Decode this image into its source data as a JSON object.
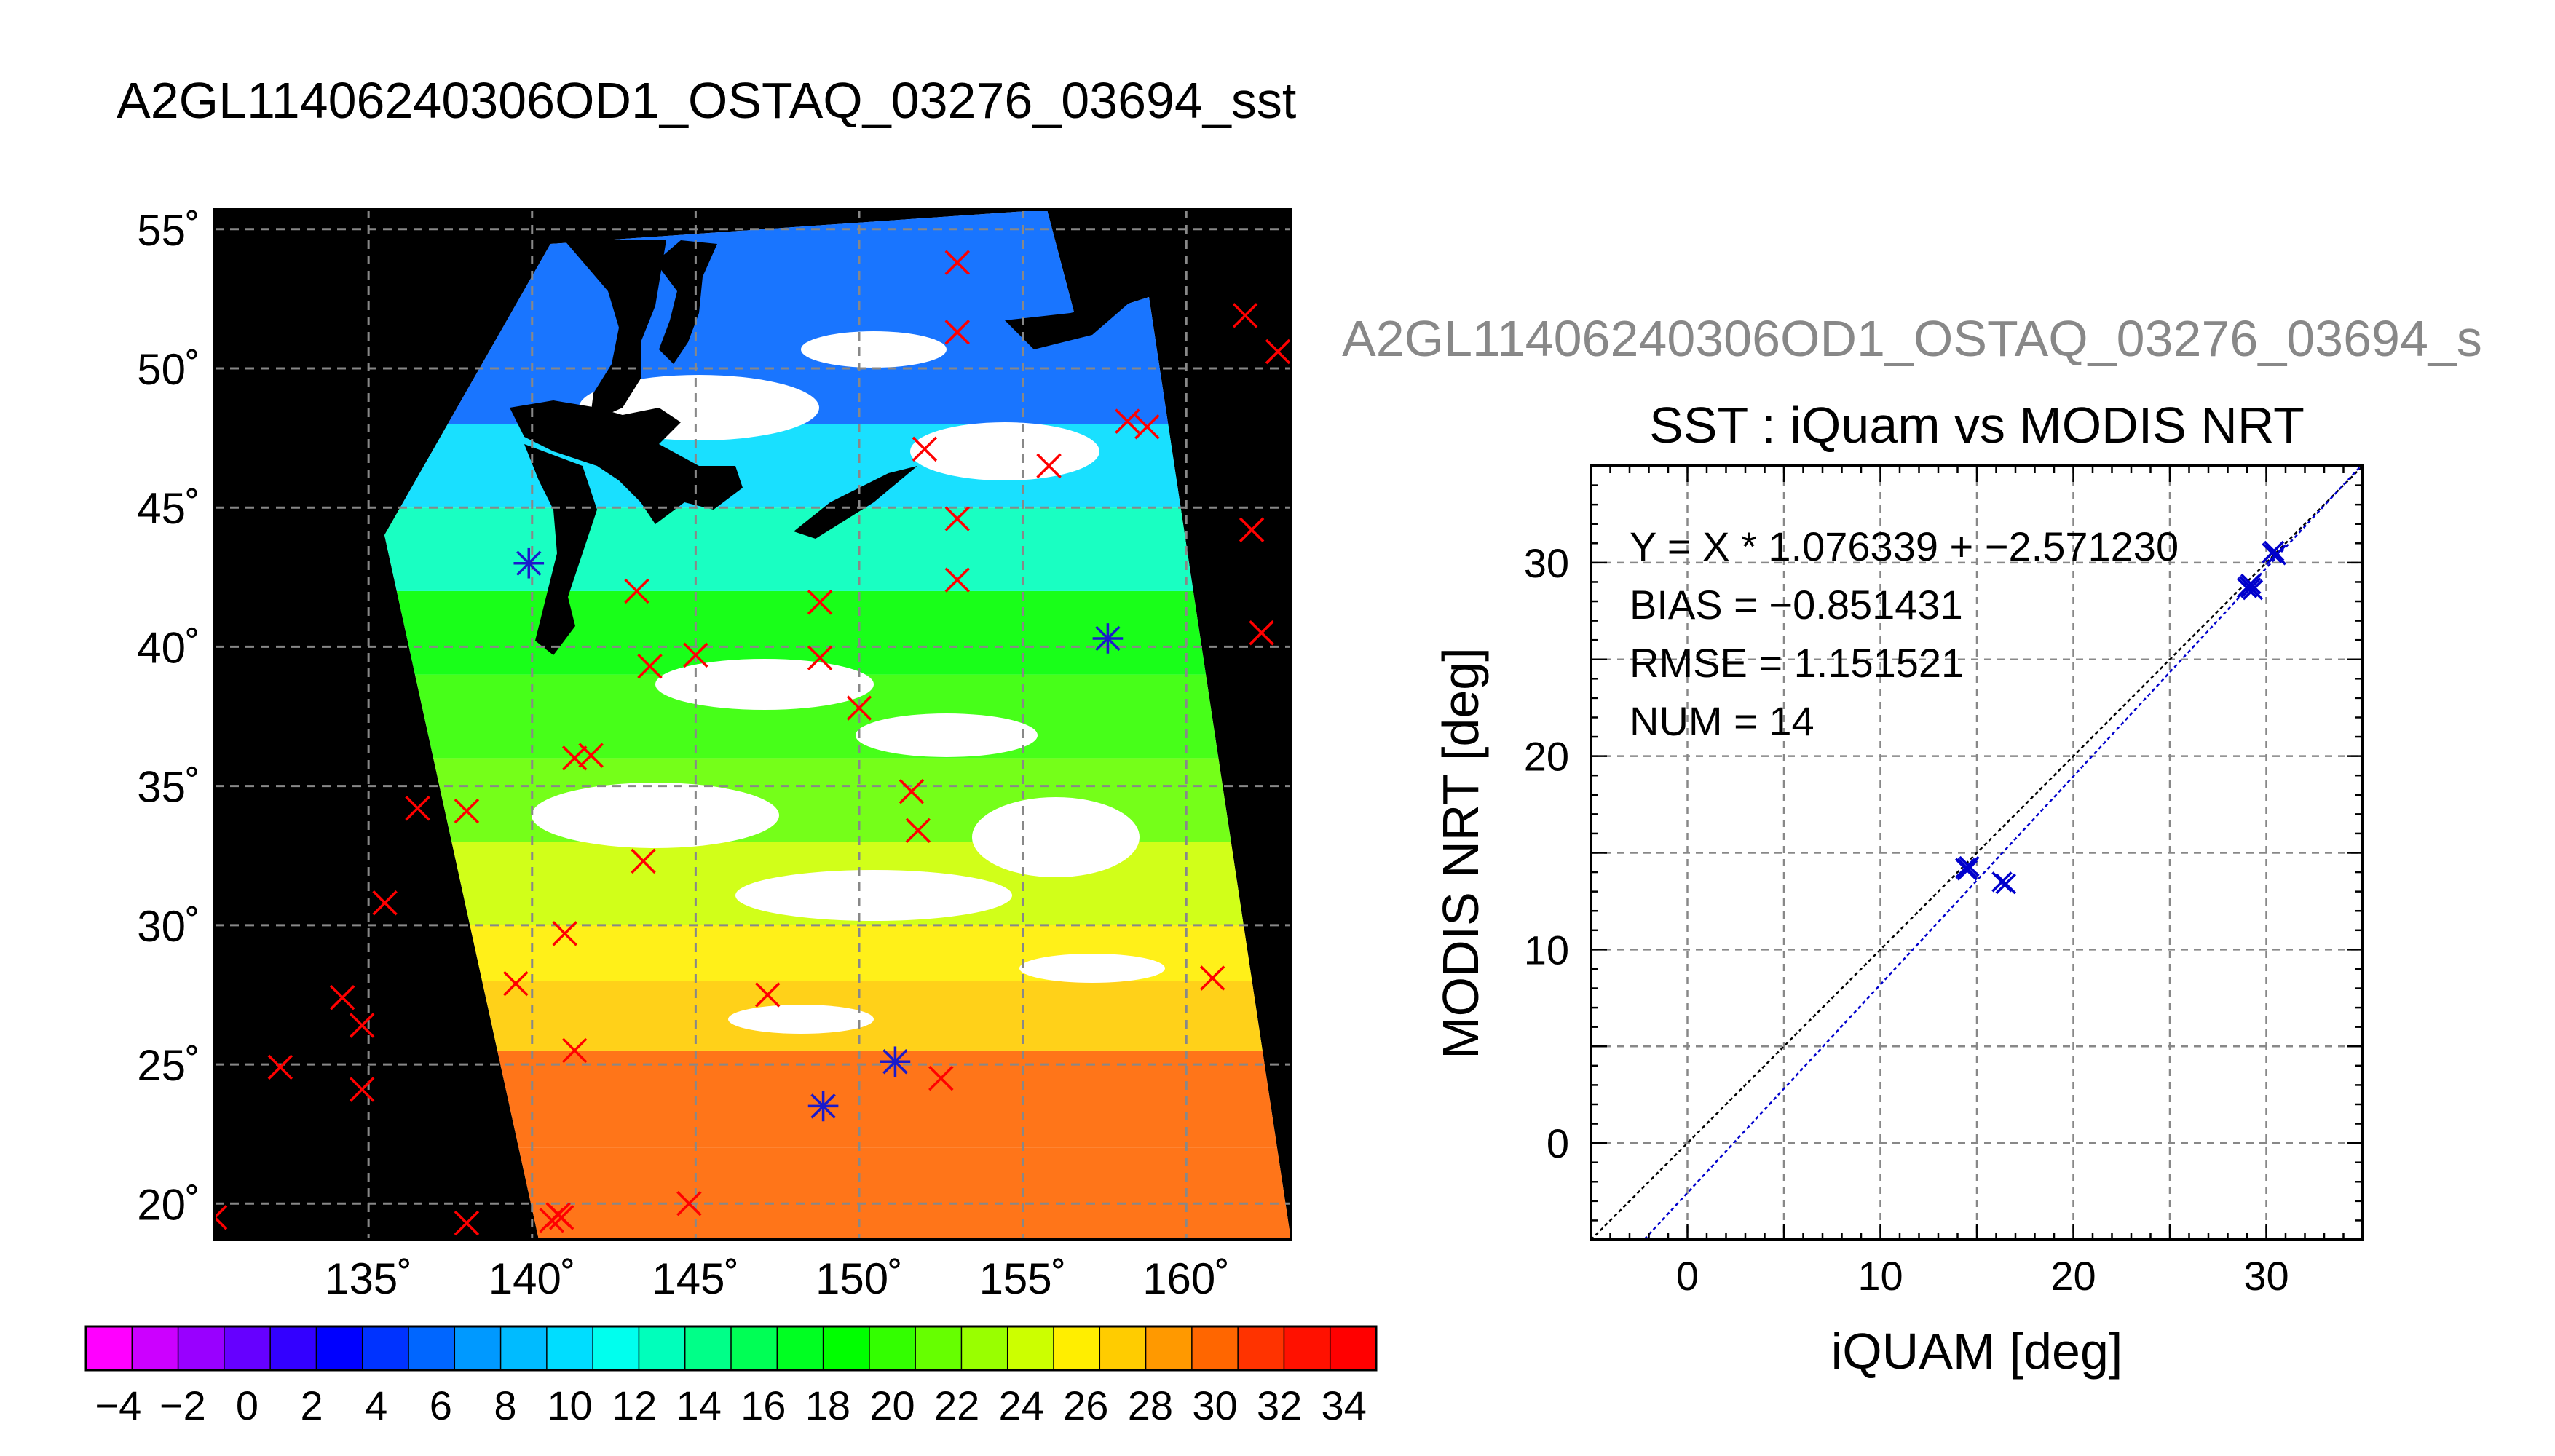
{
  "page": {
    "title": "A2GL11406240306OD1_OSTAQ_03276_03694_sst",
    "second_title": "A2GL11406240306OD1_OSTAQ_03276_03694_s"
  },
  "colors": {
    "land": "#000000",
    "cloud": "#ffffff",
    "insitu_marker": "#ff0000",
    "matchup_marker": "#1a1acc",
    "fit_line": "#0000cc",
    "identity_line": "#000000"
  },
  "chart_data": [
    {
      "type": "heatmap",
      "description_of_view": "SST map",
      "lon_ticks": [
        135,
        140,
        145,
        150,
        155,
        160
      ],
      "lat_ticks": [
        20,
        25,
        30,
        35,
        40,
        45,
        50,
        55
      ],
      "lon_tick_labels": [
        "135˚",
        "140˚",
        "145˚",
        "150˚",
        "155˚",
        "160˚"
      ],
      "lat_tick_labels": [
        "20˚",
        "25˚",
        "30˚",
        "35˚",
        "40˚",
        "45˚",
        "50˚",
        "55˚"
      ],
      "lon_range": [
        130.3,
        163.2
      ],
      "lat_range": [
        18.7,
        55.7
      ],
      "grid": true,
      "sst_bands": [
        {
          "lat_min": 18.7,
          "lat_max": 22.0,
          "value": 30.5
        },
        {
          "lat_min": 22.0,
          "lat_max": 25.5,
          "value": 29.5
        },
        {
          "lat_min": 25.5,
          "lat_max": 28.0,
          "value": 27.0
        },
        {
          "lat_min": 28.0,
          "lat_max": 30.0,
          "value": 25.5
        },
        {
          "lat_min": 30.0,
          "lat_max": 33.0,
          "value": 24.0
        },
        {
          "lat_min": 33.0,
          "lat_max": 36.0,
          "value": 22.0
        },
        {
          "lat_min": 36.0,
          "lat_max": 39.0,
          "value": 20.0
        },
        {
          "lat_min": 39.0,
          "lat_max": 42.0,
          "value": 18.0
        },
        {
          "lat_min": 42.0,
          "lat_max": 45.0,
          "value": 13.0
        },
        {
          "lat_min": 45.0,
          "lat_max": 48.0,
          "value": 10.0
        },
        {
          "lat_min": 48.0,
          "lat_max": 55.7,
          "value": 6.0
        }
      ],
      "insitu_points": [
        [
          153.0,
          53.8
        ],
        [
          153.0,
          51.3
        ],
        [
          161.8,
          51.9
        ],
        [
          162.8,
          50.6
        ],
        [
          152.0,
          47.1
        ],
        [
          155.8,
          46.5
        ],
        [
          158.2,
          48.1
        ],
        [
          158.8,
          47.9
        ],
        [
          153.0,
          44.6
        ],
        [
          162.0,
          44.2
        ],
        [
          153.0,
          42.4
        ],
        [
          143.2,
          42.0
        ],
        [
          148.8,
          41.6
        ],
        [
          162.3,
          40.5
        ],
        [
          143.6,
          39.3
        ],
        [
          145.0,
          39.7
        ],
        [
          148.8,
          39.6
        ],
        [
          150.0,
          37.8
        ],
        [
          141.3,
          36.0
        ],
        [
          141.8,
          36.1
        ],
        [
          151.6,
          34.8
        ],
        [
          151.8,
          33.4
        ],
        [
          136.5,
          34.2
        ],
        [
          138.0,
          34.1
        ],
        [
          143.4,
          32.3
        ],
        [
          135.5,
          30.8
        ],
        [
          141.0,
          29.7
        ],
        [
          139.5,
          27.9
        ],
        [
          147.2,
          27.5
        ],
        [
          160.8,
          28.1
        ],
        [
          134.2,
          27.4
        ],
        [
          134.8,
          26.4
        ],
        [
          141.3,
          25.5
        ],
        [
          132.3,
          24.9
        ],
        [
          134.8,
          24.1
        ],
        [
          152.5,
          24.5
        ],
        [
          144.8,
          20.0
        ],
        [
          130.3,
          19.5
        ],
        [
          138.0,
          19.3
        ],
        [
          140.8,
          19.6
        ],
        [
          140.6,
          19.4
        ],
        [
          140.9,
          19.5
        ]
      ],
      "matchup_points": [
        [
          139.9,
          43.0
        ],
        [
          157.6,
          40.3
        ],
        [
          151.1,
          25.1
        ],
        [
          148.9,
          23.5
        ]
      ]
    },
    {
      "type": "scatter",
      "title": "SST : iQuam vs MODIS NRT",
      "xlabel": "iQUAM [deg]",
      "ylabel": "MODIS NRT [deg]",
      "xlim": [
        -5,
        35
      ],
      "ylim": [
        -5,
        35
      ],
      "xticks": [
        0,
        10,
        20,
        30
      ],
      "yticks": [
        0,
        10,
        20,
        30
      ],
      "grid": true,
      "annotations": [
        "Y = X * 1.076339 + −2.571230",
        "BIAS = −0.851431",
        "RMSE = 1.151521",
        "NUM = 14"
      ],
      "fit": {
        "slope": 1.076339,
        "intercept": -2.57123
      },
      "points": [
        [
          14.4,
          14.2
        ],
        [
          14.6,
          14.3
        ],
        [
          14.5,
          14.1
        ],
        [
          16.3,
          13.5
        ],
        [
          16.5,
          13.4
        ],
        [
          29.0,
          28.7
        ],
        [
          29.2,
          28.9
        ],
        [
          29.3,
          28.6
        ],
        [
          29.1,
          28.8
        ],
        [
          30.3,
          30.5
        ],
        [
          30.5,
          30.4
        ],
        [
          30.4,
          30.6
        ],
        [
          29.2,
          28.7
        ],
        [
          14.5,
          14.2
        ]
      ]
    },
    {
      "type": "colorbar",
      "tick_labels": [
        "−4",
        "−2",
        "0",
        "2",
        "4",
        "6",
        "8",
        "10",
        "12",
        "14",
        "16",
        "18",
        "20",
        "22",
        "24",
        "26",
        "28",
        "30",
        "32",
        "34"
      ],
      "range": [
        -5,
        35
      ],
      "colors": [
        "#ff00ff",
        "#cc00ff",
        "#9900ff",
        "#6600ff",
        "#3300ff",
        "#0000ff",
        "#0033ff",
        "#0066ff",
        "#0099ff",
        "#00bbff",
        "#00ddff",
        "#00ffee",
        "#00ffbb",
        "#00ff88",
        "#00ff55",
        "#00ff22",
        "#00ff00",
        "#33ff00",
        "#66ff00",
        "#99ff00",
        "#ccff00",
        "#ffee00",
        "#ffcc00",
        "#ff9900",
        "#ff6600",
        "#ff3300",
        "#ff1100",
        "#ff0000"
      ]
    }
  ]
}
